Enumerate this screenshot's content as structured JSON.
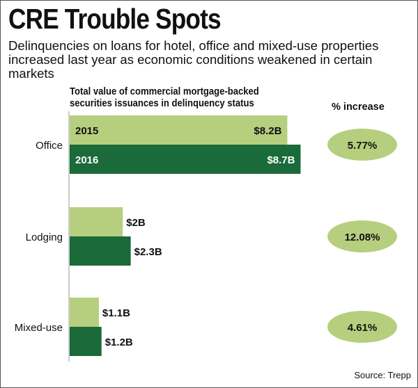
{
  "title": "CRE Trouble Spots",
  "subtitle": "Delinquencies on loans for hotel, office and mixed-use properties increased last year as economic conditions weakened in certain markets",
  "axis_caption_line1": "Total value of commercial mortgage-backed",
  "axis_caption_line2": "securities issuances in delinquency status",
  "pct_header": "% increase",
  "source": "Source: Trepp",
  "colors": {
    "y2015": "#b6cf7e",
    "y2016": "#1a6a3a",
    "oval": "#b6cf7e",
    "axis": "#9a9a9a"
  },
  "chart_data": {
    "type": "bar",
    "orientation": "horizontal",
    "categories": [
      "Office",
      "Lodging",
      "Mixed-use"
    ],
    "series": [
      {
        "name": "2015",
        "values": [
          8.2,
          2.0,
          1.1
        ],
        "labels": [
          "$8.2B",
          "$2B",
          "$1.1B"
        ]
      },
      {
        "name": "2016",
        "values": [
          8.7,
          2.3,
          1.2
        ],
        "labels": [
          "$8.7B",
          "$2.3B",
          "$1.2B"
        ]
      }
    ],
    "percent_increase": [
      "5.77%",
      "12.08%",
      "4.61%"
    ],
    "units": "billions of dollars"
  }
}
